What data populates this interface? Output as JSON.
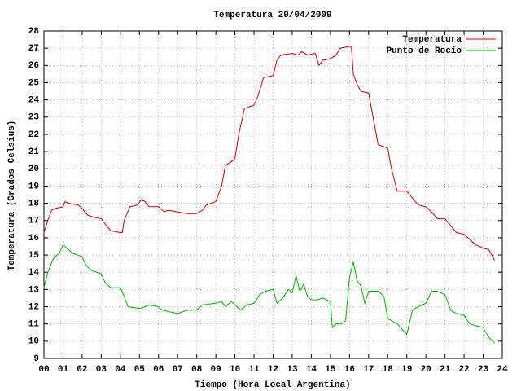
{
  "chart_data": {
    "type": "line",
    "title": "Temperatura 29/04/2009",
    "x_label": "Tiempo (Hora Local Argentina)",
    "y_label": "Temperatura (Grados Celsius)",
    "xlim": [
      0,
      24
    ],
    "ylim": [
      9,
      28
    ],
    "xticks": [
      {
        "value": 0,
        "label": "00"
      },
      {
        "value": 1,
        "label": "01"
      },
      {
        "value": 2,
        "label": "02"
      },
      {
        "value": 3,
        "label": "03"
      },
      {
        "value": 4,
        "label": "04"
      },
      {
        "value": 5,
        "label": "05"
      },
      {
        "value": 6,
        "label": "06"
      },
      {
        "value": 7,
        "label": "07"
      },
      {
        "value": 8,
        "label": "08"
      },
      {
        "value": 9,
        "label": "09"
      },
      10,
      11,
      12,
      13,
      14,
      15,
      16,
      17,
      18,
      19,
      20,
      21,
      22,
      23,
      24
    ],
    "yticks": [
      9,
      10,
      11,
      12,
      13,
      14,
      15,
      16,
      17,
      18,
      19,
      20,
      21,
      22,
      23,
      24,
      25,
      26,
      27,
      28
    ],
    "grid": true,
    "legend": "top-right",
    "series": [
      {
        "name": "Temperatura",
        "color": "#d00000",
        "x": [
          0,
          0.2,
          0.4,
          0.6,
          1.0,
          1.1,
          1.3,
          1.8,
          2.0,
          2.3,
          2.6,
          3.0,
          3.2,
          3.5,
          4.0,
          4.1,
          4.2,
          4.5,
          4.9,
          5.1,
          5.3,
          5.5,
          6.0,
          6.3,
          6.5,
          7.0,
          7.5,
          8.0,
          8.3,
          8.5,
          9.0,
          9.3,
          9.5,
          9.8,
          10.0,
          10.2,
          10.5,
          11.0,
          11.2,
          11.5,
          12.0,
          12.2,
          12.4,
          13.0,
          13.3,
          13.5,
          13.8,
          14.2,
          14.4,
          14.6,
          15.0,
          15.3,
          15.5,
          16.0,
          16.1,
          16.2,
          16.4,
          16.6,
          17.0,
          17.2,
          17.5,
          18.0,
          18.2,
          18.5,
          19.0,
          19.3,
          19.6,
          20.0,
          20.3,
          20.6,
          21.0,
          21.3,
          21.6,
          22.0,
          22.3,
          22.6,
          23.0,
          23.3,
          23.6
        ],
        "values": [
          16.3,
          17.0,
          17.6,
          17.7,
          17.8,
          18.1,
          18.0,
          17.9,
          17.7,
          17.3,
          17.2,
          17.1,
          16.8,
          16.4,
          16.3,
          16.3,
          17.0,
          17.8,
          17.9,
          18.2,
          18.1,
          17.8,
          17.8,
          17.5,
          17.6,
          17.5,
          17.4,
          17.4,
          17.6,
          17.9,
          18.1,
          19.0,
          20.2,
          20.4,
          20.6,
          22.0,
          23.5,
          23.7,
          24.2,
          25.3,
          25.4,
          26.3,
          26.6,
          26.7,
          26.6,
          26.8,
          26.6,
          26.7,
          26.0,
          26.3,
          26.4,
          26.6,
          27.0,
          27.1,
          27.1,
          25.5,
          24.9,
          24.5,
          24.4,
          23.2,
          21.4,
          21.2,
          20.0,
          18.7,
          18.7,
          18.3,
          17.9,
          17.8,
          17.5,
          17.1,
          17.1,
          16.7,
          16.3,
          16.2,
          15.9,
          15.6,
          15.4,
          15.3,
          14.7
        ]
      },
      {
        "name": "Punto de Rocío",
        "color": "#00b000",
        "x": [
          0,
          0.2,
          0.5,
          0.8,
          1.0,
          1.2,
          1.5,
          2.0,
          2.2,
          2.5,
          3.0,
          3.2,
          3.5,
          4.0,
          4.2,
          4.4,
          5.0,
          5.3,
          5.5,
          6.0,
          6.2,
          6.6,
          7.0,
          7.5,
          8.0,
          8.3,
          9.0,
          9.3,
          9.5,
          9.8,
          10.0,
          10.3,
          10.6,
          11.0,
          11.3,
          11.6,
          12.0,
          12.2,
          12.5,
          12.8,
          13.0,
          13.2,
          13.4,
          13.6,
          13.8,
          14.0,
          14.3,
          14.6,
          15.0,
          15.1,
          15.3,
          15.6,
          15.8,
          16.0,
          16.2,
          16.4,
          16.6,
          16.8,
          17.0,
          17.5,
          17.8,
          18.0,
          18.2,
          18.5,
          19.0,
          19.3,
          19.6,
          20.0,
          20.3,
          20.6,
          21.0,
          21.3,
          21.6,
          22.0,
          22.3,
          22.6,
          23.0,
          23.3,
          23.6
        ],
        "values": [
          13.1,
          14.0,
          14.8,
          15.1,
          15.6,
          15.4,
          15.1,
          14.9,
          14.4,
          14.1,
          13.9,
          13.4,
          13.1,
          13.1,
          12.6,
          12.0,
          11.9,
          12.0,
          12.1,
          12.0,
          11.8,
          11.7,
          11.6,
          11.8,
          11.8,
          12.1,
          12.2,
          12.3,
          12.0,
          12.3,
          12.1,
          11.8,
          12.1,
          12.2,
          12.7,
          12.9,
          13.0,
          12.2,
          12.5,
          13.0,
          12.8,
          13.8,
          12.9,
          13.3,
          12.6,
          12.4,
          12.4,
          12.5,
          12.3,
          10.8,
          11.0,
          11.0,
          11.2,
          13.7,
          14.6,
          13.5,
          13.2,
          12.2,
          12.9,
          12.9,
          12.6,
          11.3,
          11.2,
          11.0,
          10.4,
          11.8,
          12.0,
          12.2,
          12.9,
          12.9,
          12.7,
          11.8,
          11.6,
          11.5,
          11.0,
          10.9,
          10.8,
          10.2,
          9.9
        ]
      }
    ]
  }
}
